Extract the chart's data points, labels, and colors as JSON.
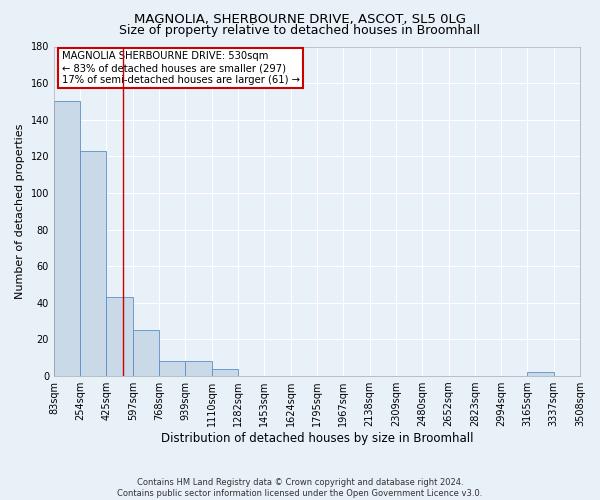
{
  "title": "MAGNOLIA, SHERBOURNE DRIVE, ASCOT, SL5 0LG",
  "subtitle": "Size of property relative to detached houses in Broomhall",
  "xlabel": "Distribution of detached houses by size in Broomhall",
  "ylabel": "Number of detached properties",
  "bins": [
    83,
    254,
    425,
    597,
    768,
    939,
    1110,
    1282,
    1453,
    1624,
    1795,
    1967,
    2138,
    2309,
    2480,
    2652,
    2823,
    2994,
    3165,
    3337,
    3508
  ],
  "counts": [
    150,
    123,
    43,
    25,
    8,
    8,
    4,
    0,
    0,
    0,
    0,
    0,
    0,
    0,
    0,
    0,
    0,
    0,
    2,
    0
  ],
  "bar_color": "#c9d9e8",
  "bar_edge_color": "#5b8fc9",
  "vline_x": 530,
  "vline_color": "#cc0000",
  "annotation_text": "MAGNOLIA SHERBOURNE DRIVE: 530sqm\n← 83% of detached houses are smaller (297)\n17% of semi-detached houses are larger (61) →",
  "annotation_box_color": "#cc0000",
  "annotation_bg_color": "#ffffff",
  "ylim": [
    0,
    180
  ],
  "yticks": [
    0,
    20,
    40,
    60,
    80,
    100,
    120,
    140,
    160,
    180
  ],
  "background_color": "#e8f0f8",
  "plot_bg_color": "#e8f0f8",
  "footer_line1": "Contains HM Land Registry data © Crown copyright and database right 2024.",
  "footer_line2": "Contains public sector information licensed under the Open Government Licence v3.0.",
  "grid_color": "#ffffff",
  "title_fontsize": 9.5,
  "subtitle_fontsize": 9,
  "tick_label_fontsize": 7,
  "ylabel_fontsize": 8,
  "xlabel_fontsize": 8.5
}
